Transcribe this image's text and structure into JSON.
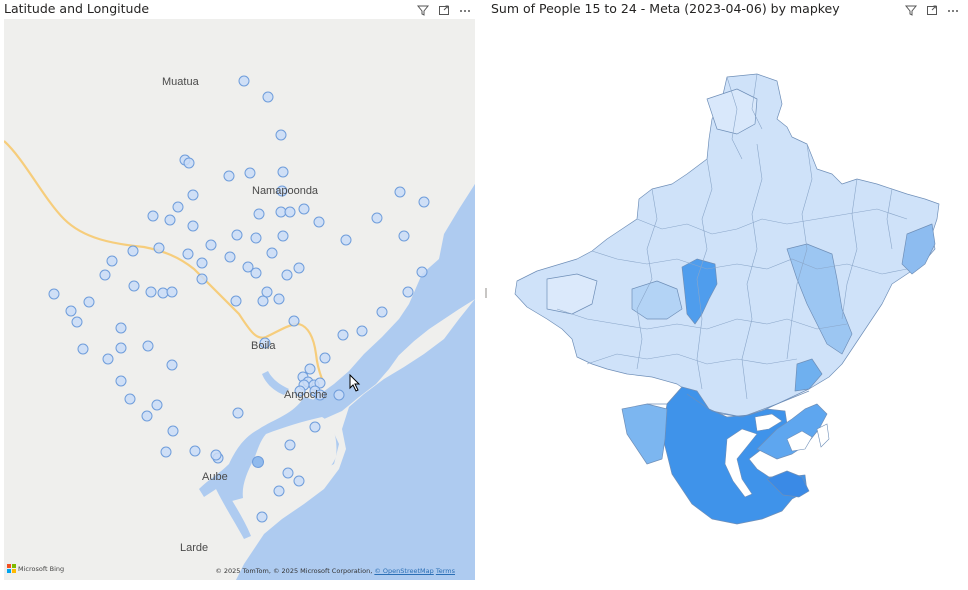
{
  "left_visual": {
    "title": "Latitude and Longitude",
    "icons": [
      "filter-icon",
      "focus-mode-icon",
      "more-options-icon"
    ],
    "map": {
      "cities": [
        "Muatua",
        "Namapoonda",
        "Boila",
        "Angoche",
        "Aube",
        "Larde"
      ],
      "attribution": "© 2025 TomTom, © 2025 Microsoft Corporation,",
      "attribution_link": "© OpenStreetMap",
      "terms": "Terms",
      "provider": "Microsoft Bing",
      "colors": {
        "land": "#efefed",
        "water": "#aecbf0",
        "road": "#f6cd7c",
        "bubble_fill": "#c9dcf7",
        "bubble_stroke": "#6f9ddb",
        "bubble_dark": "#5a8fd6"
      }
    }
  },
  "right_visual": {
    "title": "Sum of People 15 to 24 - Meta (2023-04-06) by mapkey",
    "icons": [
      "filter-icon",
      "focus-mode-icon",
      "more-options-icon"
    ],
    "colors": {
      "light": "#cfe2f9",
      "mid": "#9cc6f2",
      "dark": "#3f93ea",
      "border": "#6f8fb8"
    }
  }
}
